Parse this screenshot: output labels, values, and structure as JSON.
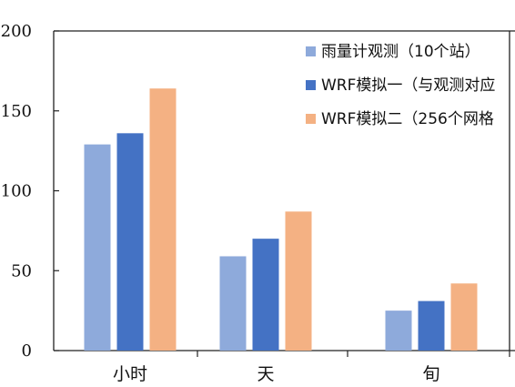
{
  "chart_data": {
    "type": "bar",
    "categories": [
      "小时",
      "天",
      "旬"
    ],
    "series": [
      {
        "name": "雨量计观测（10个站）",
        "values": [
          129,
          59,
          25
        ],
        "color": "#8eaadb"
      },
      {
        "name": "WRF模拟一（与观测对应",
        "values": [
          136,
          70,
          31
        ],
        "color": "#4472c4"
      },
      {
        "name": "WRF模拟二（256个网格",
        "values": [
          164,
          87,
          42
        ],
        "color": "#f4b183"
      }
    ],
    "ylim": [
      0,
      200
    ],
    "yticks": [
      0,
      50,
      100,
      150,
      200
    ],
    "xlabel": "",
    "ylabel": "",
    "grid": false,
    "legend_position": "top-right"
  }
}
